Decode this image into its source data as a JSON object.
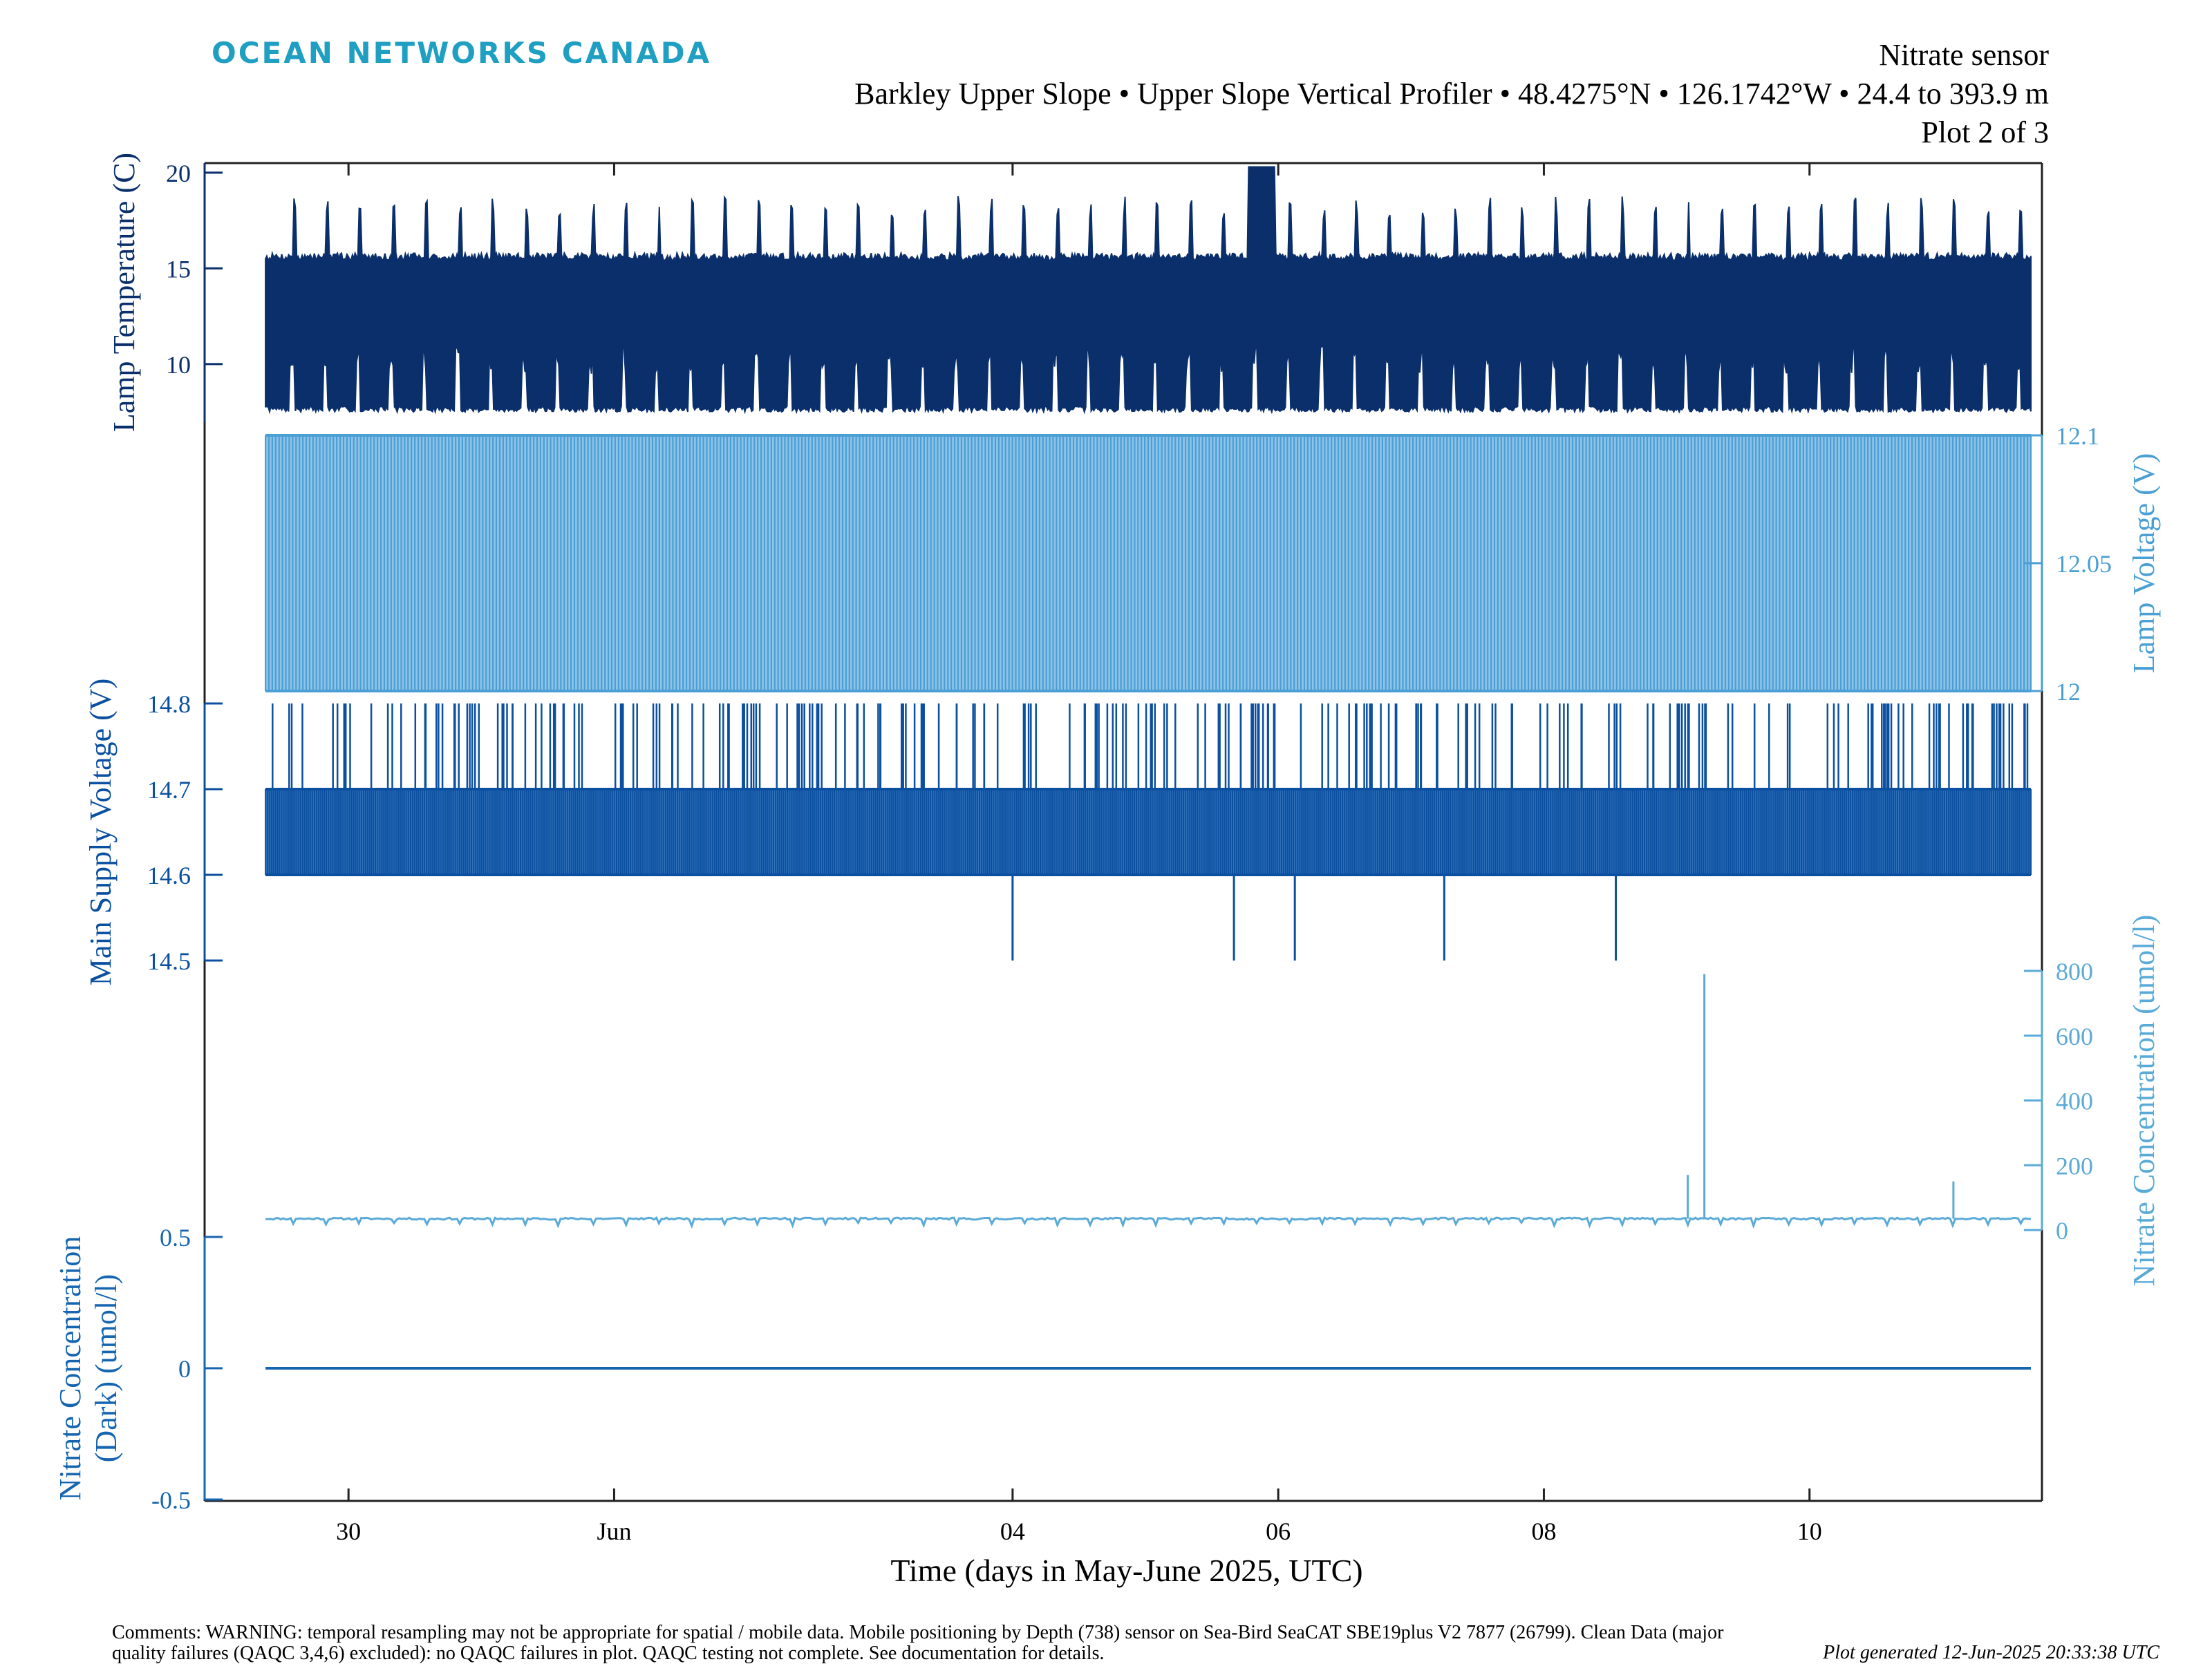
{
  "header": {
    "brand": "OCEAN NETWORKS CANADA",
    "sensor": "Nitrate sensor",
    "location": "Barkley Upper Slope • Upper Slope Vertical Profiler • 48.4275°N • 126.1742°W • 24.4 to 393.9 m",
    "plot_number": "Plot 2 of 3"
  },
  "footer": {
    "comments": "Comments: WARNING: temporal resampling may not be appropriate for spatial / mobile data. Mobile positioning by Depth (738) sensor on Sea-Bird SeaCAT SBE19plus V2 7877 (26799). Clean Data (major quality failures (QAQC 3,4,6) excluded): no QAQC failures in plot. QAQC testing not complete. See documentation for details.",
    "generated": "Plot generated 12-Jun-2025 20:33:38 UTC"
  },
  "colors": {
    "lamp_temperature": "#0a2f6b",
    "lamp_voltage": "#4a9fd4",
    "main_supply_voltage": "#0b50a0",
    "nitrate_concentration": "#5aaad8",
    "nitrate_dark": "#1565b0",
    "axis": "#222222"
  },
  "chart_data": {
    "type": "line",
    "xlabel": "Time (days in May-June 2025, UTC)",
    "x_range": [
      "2025-05-28 22:00",
      "2025-06-11 18:00"
    ],
    "x_ticks": [
      {
        "date": "2025-05-30",
        "label": "30"
      },
      {
        "date": "2025-06-01",
        "label": "Jun"
      },
      {
        "date": "2025-06-04",
        "label": "04"
      },
      {
        "date": "2025-06-06",
        "label": "06"
      },
      {
        "date": "2025-06-08",
        "label": "08"
      },
      {
        "date": "2025-06-10",
        "label": "10"
      }
    ],
    "data_range": [
      "2025-05-29 09:00",
      "2025-06-11 16:00"
    ],
    "series": [
      {
        "key": "lamp_temperature",
        "name": "Lamp Temperature (C)",
        "axis_side": "left",
        "ylim": [
          7,
          20.5
        ],
        "y_ticks": [
          10,
          15,
          20
        ],
        "baseline_min": 7.5,
        "baseline_max": 15.6,
        "spike_peak": 20.3,
        "spike_peak_date": "2025-06-05 21:00",
        "profile_cycles_per_day": 4
      },
      {
        "key": "lamp_voltage",
        "name": "Lamp Voltage (V)",
        "axis_side": "right",
        "ylim": [
          12,
          12.1
        ],
        "y_ticks": [
          12,
          12.05,
          12.1
        ],
        "values_min": 12.0,
        "values_max": 12.1
      },
      {
        "key": "main_supply_voltage",
        "name": "Main Supply Voltage (V)",
        "axis_side": "left",
        "ylim": [
          14.5,
          14.8
        ],
        "y_ticks": [
          14.5,
          14.6,
          14.7,
          14.8
        ],
        "baseline_min": 14.6,
        "baseline_max": 14.7,
        "upper_spike": 14.8,
        "drop_value": 14.5,
        "drops": [
          "2025-06-04 00:00",
          "2025-06-05 16:00",
          "2025-06-06 03:00",
          "2025-06-07 06:00",
          "2025-06-08 13:00"
        ]
      },
      {
        "key": "nitrate_concentration",
        "name": "Nitrate Concentration (umol/l)",
        "axis_side": "right",
        "ylim": [
          0,
          800
        ],
        "y_ticks": [
          0,
          200,
          400,
          600,
          800
        ],
        "baseline": 35,
        "spikes": [
          {
            "date": "2025-06-09 02:00",
            "value": 170
          },
          {
            "date": "2025-06-09 05:00",
            "value": 790
          },
          {
            "date": "2025-06-11 02:00",
            "value": 150
          }
        ]
      },
      {
        "key": "nitrate_dark",
        "name": "Nitrate Concentration (Dark) (umol/l)",
        "axis_side": "left",
        "ylim": [
          -0.5,
          0.5
        ],
        "y_ticks": [
          -0.5,
          0,
          0.5
        ],
        "y_tick_labels": [
          "-0.5",
          "0",
          "0.5"
        ],
        "value": 0
      }
    ]
  }
}
